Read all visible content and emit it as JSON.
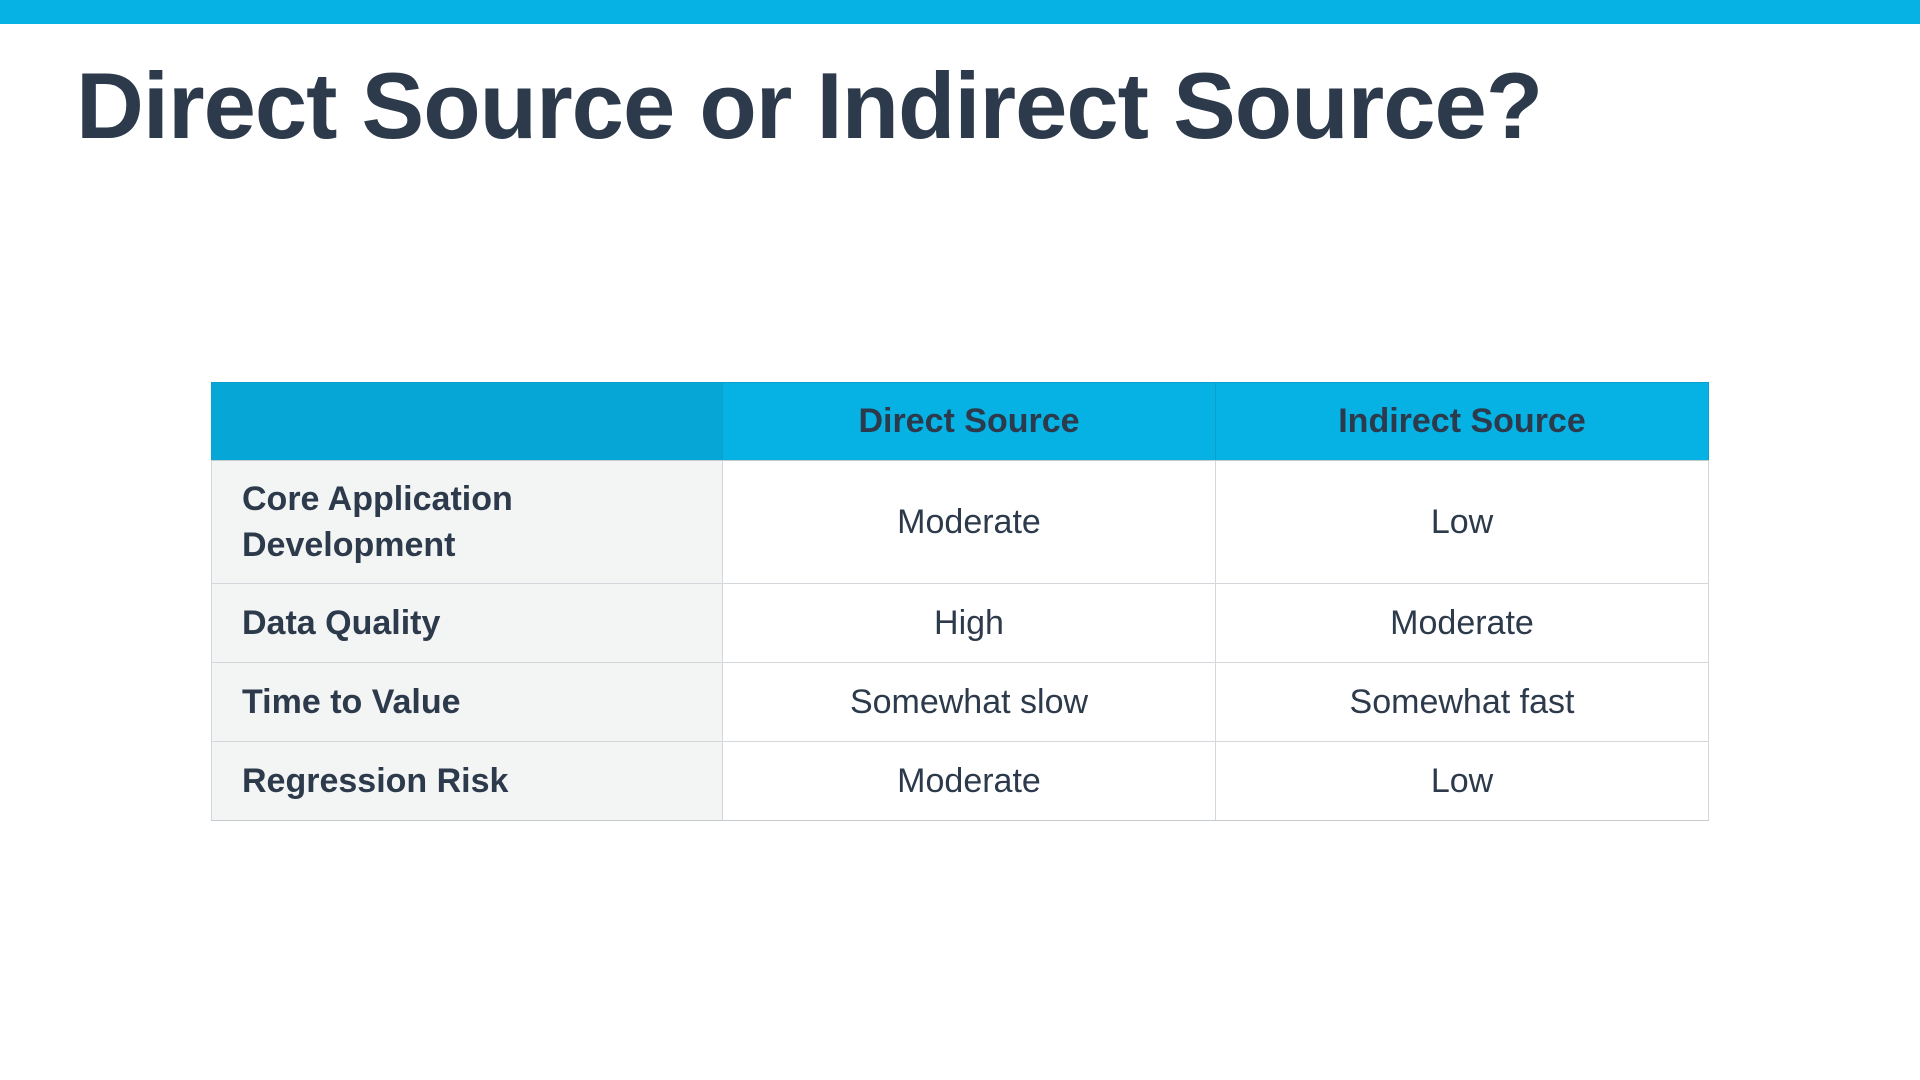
{
  "slide": {
    "title": "Direct Source or Indirect Source?"
  },
  "table": {
    "headers": [
      "",
      "Direct Source",
      "Indirect Source"
    ],
    "rows": [
      {
        "label": "Core Application Development",
        "direct": "Moderate",
        "indirect": "Low"
      },
      {
        "label": "Data Quality",
        "direct": "High",
        "indirect": "Moderate"
      },
      {
        "label": "Time to Value",
        "direct": "Somewhat slow",
        "indirect": "Somewhat fast"
      },
      {
        "label": "Regression Risk",
        "direct": "Moderate",
        "indirect": "Low"
      }
    ]
  },
  "colors": {
    "accent": "#05b2e3",
    "text": "#2c3a4b",
    "row_label_bg": "#f3f4f4",
    "border": "#d4d8dc"
  }
}
